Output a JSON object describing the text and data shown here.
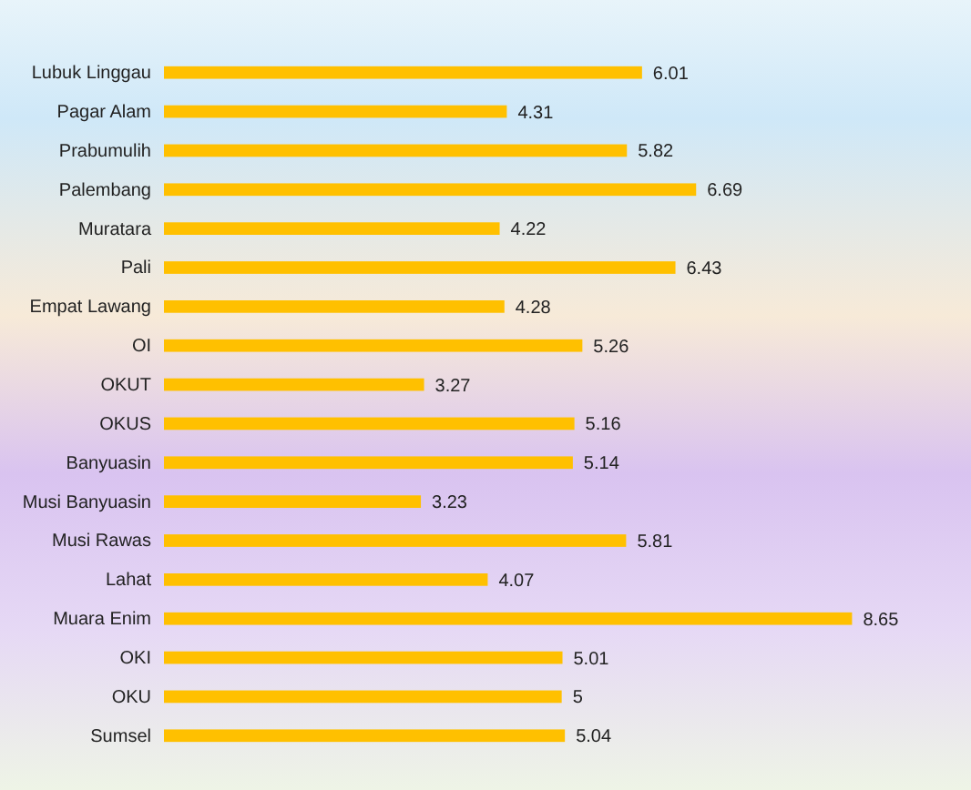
{
  "chart_data": {
    "type": "bar",
    "orientation": "horizontal",
    "categories": [
      "Lubuk Linggau",
      "Pagar Alam",
      "Prabumulih",
      "Palembang",
      "Muratara",
      "Pali",
      "Empat Lawang",
      "OI",
      "OKUT",
      "OKUS",
      "Banyuasin",
      "Musi Banyuasin",
      "Musi Rawas",
      "Lahat",
      "Muara Enim",
      "OKI",
      "OKU",
      "Sumsel"
    ],
    "values": [
      6.01,
      4.31,
      5.82,
      6.69,
      4.22,
      6.43,
      4.28,
      5.26,
      3.27,
      5.16,
      5.14,
      3.23,
      5.81,
      4.07,
      8.65,
      5.01,
      5,
      5.04
    ],
    "color": "#ffc000",
    "data_labels": true
  }
}
